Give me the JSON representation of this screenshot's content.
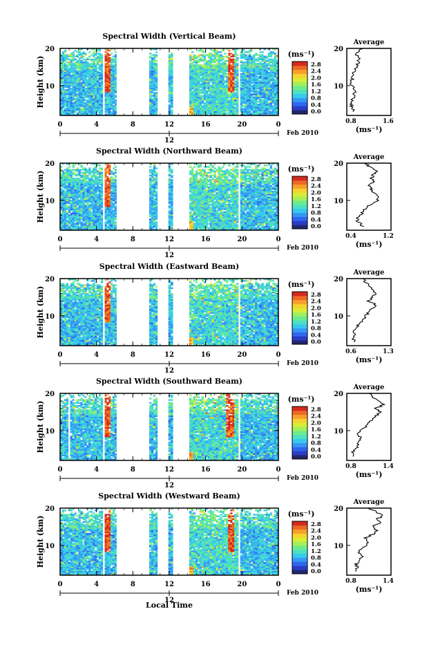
{
  "chart_data": [
    {
      "type": "heatmap",
      "title": "Spectral Width (Vertical Beam)",
      "ylabel": "Height (km)",
      "x_ticks": [
        "0",
        "4",
        "8",
        "12",
        "16",
        "20",
        "0"
      ],
      "xlim": [
        0,
        24
      ],
      "y_ticks": [
        "20",
        "10"
      ],
      "ylim": [
        2,
        20
      ],
      "date_tick": "12",
      "date_label": "Feb 2010",
      "colorbar": {
        "unit": "(ms⁻¹)",
        "ticks": [
          "2.8",
          "2.4",
          "2.0",
          "1.6",
          "1.2",
          "0.8",
          "0.4",
          "0.0"
        ]
      },
      "data_intervals_hours": [
        [
          0,
          4.7
        ],
        [
          4.9,
          6.2
        ],
        [
          9.8,
          10.7
        ],
        [
          11.9,
          12.4
        ],
        [
          14.2,
          19.6
        ],
        [
          19.8,
          24
        ]
      ],
      "high_width_streaks_hours": [
        5.2,
        18.8
      ],
      "average_profile": {
        "title": "Average",
        "xlabel": "(ms⁻¹)",
        "x_ticks": [
          "0.8",
          "1.6"
        ],
        "xlim": [
          0.8,
          1.6
        ],
        "y_ticks": [
          "20",
          "10"
        ],
        "ylim": [
          2,
          20
        ],
        "heights_km": [
          3,
          4,
          5,
          6,
          7,
          8,
          9,
          10,
          11,
          12,
          13,
          14,
          15,
          16,
          17,
          18,
          19,
          20
        ],
        "values": [
          0.95,
          0.9,
          0.88,
          0.9,
          0.92,
          0.95,
          0.92,
          0.9,
          0.88,
          0.9,
          0.92,
          0.95,
          0.98,
          1.0,
          1.02,
          0.98,
          1.0,
          1.1
        ]
      }
    },
    {
      "type": "heatmap",
      "title": "Spectral Width (Northward Beam)",
      "ylabel": "Height (km)",
      "x_ticks": [
        "0",
        "4",
        "8",
        "12",
        "16",
        "20",
        "0"
      ],
      "xlim": [
        0,
        24
      ],
      "y_ticks": [
        "20",
        "10"
      ],
      "ylim": [
        2,
        20
      ],
      "date_tick": "12",
      "date_label": "Feb 2010",
      "colorbar": {
        "unit": "(ms⁻¹)",
        "ticks": [
          "2.8",
          "2.4",
          "2.0",
          "1.6",
          "1.2",
          "0.8",
          "0.4",
          "0.0"
        ]
      },
      "data_intervals_hours": [
        [
          0,
          4.7
        ],
        [
          4.9,
          6.2
        ],
        [
          9.8,
          10.7
        ],
        [
          11.9,
          12.4
        ],
        [
          14.2,
          19.6
        ],
        [
          19.8,
          24
        ]
      ],
      "high_width_streaks_hours": [
        5.2
      ],
      "average_profile": {
        "title": "Average",
        "xlabel": "(ms⁻¹)",
        "x_ticks": [
          "0.4",
          "1.2"
        ],
        "xlim": [
          0.4,
          1.2
        ],
        "y_ticks": [
          "20",
          "10"
        ],
        "ylim": [
          2,
          20
        ],
        "heights_km": [
          3,
          4,
          5,
          6,
          7,
          8,
          9,
          10,
          11,
          12,
          13,
          14,
          15,
          16,
          17,
          18,
          19,
          20
        ],
        "values": [
          0.7,
          0.62,
          0.58,
          0.65,
          0.7,
          0.75,
          0.85,
          0.95,
          1.0,
          0.9,
          0.85,
          0.8,
          0.9,
          0.85,
          0.88,
          0.95,
          0.8,
          0.75
        ]
      }
    },
    {
      "type": "heatmap",
      "title": "Spectral Width (Eastward Beam)",
      "ylabel": "Height (km)",
      "x_ticks": [
        "0",
        "4",
        "8",
        "12",
        "16",
        "20",
        "0"
      ],
      "xlim": [
        0,
        24
      ],
      "y_ticks": [
        "20",
        "10"
      ],
      "ylim": [
        2,
        20
      ],
      "date_tick": "12",
      "date_label": "Feb 2010",
      "colorbar": {
        "unit": "(ms⁻¹)",
        "ticks": [
          "2.8",
          "2.4",
          "2.0",
          "1.6",
          "1.2",
          "0.8",
          "0.4",
          "0.0"
        ]
      },
      "data_intervals_hours": [
        [
          0,
          4.7
        ],
        [
          4.9,
          6.2
        ],
        [
          9.8,
          10.7
        ],
        [
          11.9,
          12.4
        ],
        [
          14.2,
          19.6
        ],
        [
          19.8,
          24
        ]
      ],
      "high_width_streaks_hours": [
        5.2
      ],
      "average_profile": {
        "title": "Average",
        "xlabel": "(ms⁻¹)",
        "x_ticks": [
          "0.6",
          "1.3"
        ],
        "xlim": [
          0.6,
          1.3
        ],
        "y_ticks": [
          "20",
          "10"
        ],
        "ylim": [
          2,
          20
        ],
        "heights_km": [
          3,
          4,
          5,
          6,
          7,
          8,
          9,
          10,
          11,
          12,
          13,
          14,
          15,
          16,
          17,
          18,
          19,
          20
        ],
        "values": [
          0.72,
          0.7,
          0.74,
          0.72,
          0.76,
          0.8,
          0.85,
          0.9,
          0.95,
          1.0,
          1.05,
          0.95,
          1.0,
          1.05,
          1.0,
          0.95,
          0.9,
          0.85
        ]
      }
    },
    {
      "type": "heatmap",
      "title": "Spectral Width (Southward Beam)",
      "ylabel": "Height (km)",
      "x_ticks": [
        "0",
        "4",
        "8",
        "12",
        "16",
        "20",
        "0"
      ],
      "xlim": [
        0,
        24
      ],
      "y_ticks": [
        "20",
        "10"
      ],
      "ylim": [
        2,
        20
      ],
      "date_tick": "12",
      "date_label": "Feb 2010",
      "colorbar": {
        "unit": "(ms⁻¹)",
        "ticks": [
          "2.8",
          "2.4",
          "2.0",
          "1.6",
          "1.2",
          "0.8",
          "0.4",
          "0.0"
        ]
      },
      "data_intervals_hours": [
        [
          0,
          0.9
        ],
        [
          1.1,
          4.7
        ],
        [
          4.9,
          6.2
        ],
        [
          9.8,
          10.7
        ],
        [
          11.9,
          12.4
        ],
        [
          14.2,
          19.6
        ],
        [
          19.8,
          24
        ]
      ],
      "high_width_streaks_hours": [
        5.2,
        18.7
      ],
      "average_profile": {
        "title": "Average",
        "xlabel": "(ms⁻¹)",
        "x_ticks": [
          "0.8",
          "1.4"
        ],
        "xlim": [
          0.8,
          1.4
        ],
        "y_ticks": [
          "20",
          "10"
        ],
        "ylim": [
          2,
          20
        ],
        "heights_km": [
          3,
          4,
          5,
          6,
          7,
          8,
          9,
          10,
          11,
          12,
          13,
          14,
          15,
          16,
          17,
          18,
          19,
          20
        ],
        "values": [
          0.9,
          0.88,
          0.92,
          0.95,
          0.98,
          1.0,
          0.95,
          1.0,
          1.05,
          1.1,
          1.15,
          1.2,
          1.25,
          1.2,
          1.3,
          1.25,
          1.15,
          1.1
        ]
      }
    },
    {
      "type": "heatmap",
      "title": "Spectral Width (Westward Beam)",
      "ylabel": "Height (km)",
      "x_ticks": [
        "0",
        "4",
        "8",
        "12",
        "16",
        "20",
        "0"
      ],
      "xlim": [
        0,
        24
      ],
      "y_ticks": [
        "20",
        "10"
      ],
      "ylim": [
        2,
        20
      ],
      "date_tick": "12",
      "date_label": "Feb 2010",
      "colorbar": {
        "unit": "(ms⁻¹)",
        "ticks": [
          "2.8",
          "2.4",
          "2.0",
          "1.6",
          "1.2",
          "0.8",
          "0.4",
          "0.0"
        ]
      },
      "data_intervals_hours": [
        [
          0,
          4.7
        ],
        [
          4.9,
          6.2
        ],
        [
          9.8,
          10.7
        ],
        [
          11.9,
          12.4
        ],
        [
          14.2,
          19.6
        ],
        [
          19.8,
          24
        ]
      ],
      "high_width_streaks_hours": [
        5.2,
        18.8
      ],
      "average_profile": {
        "title": "Average",
        "xlabel": "(ms⁻¹)",
        "x_ticks": [
          "0.8",
          "1.4"
        ],
        "xlim": [
          0.8,
          1.4
        ],
        "y_ticks": [
          "20",
          "10"
        ],
        "ylim": [
          2,
          20
        ],
        "heights_km": [
          3,
          4,
          5,
          6,
          7,
          8,
          9,
          10,
          11,
          12,
          13,
          14,
          15,
          16,
          17,
          18,
          19,
          20
        ],
        "values": [
          0.9,
          0.95,
          0.92,
          0.98,
          1.0,
          0.95,
          1.0,
          1.05,
          1.1,
          1.05,
          1.15,
          1.2,
          1.15,
          1.25,
          1.2,
          1.3,
          1.2,
          1.1
        ]
      }
    }
  ],
  "footer": {
    "xlabel": "Local Time"
  },
  "colormap": [
    "#20286a",
    "#2a3cc8",
    "#2f66ee",
    "#3598f4",
    "#38c8ee",
    "#4ee0c0",
    "#6ceb8e",
    "#a4ef5a",
    "#d7ee36",
    "#f6d22e",
    "#f7a02a",
    "#ee6824",
    "#d42a1e"
  ]
}
